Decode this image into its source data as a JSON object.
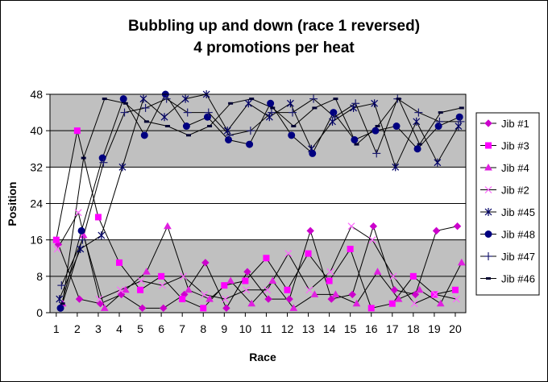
{
  "chart_data": {
    "type": "line",
    "title": "Bubbling up and down (race 1 reversed)",
    "subtitle": "4 promotions per heat",
    "xlabel": "Race",
    "ylabel": "Position",
    "ylim": [
      0,
      48
    ],
    "yticks": [
      0,
      8,
      16,
      24,
      32,
      40,
      48
    ],
    "xlim": [
      0.7,
      20.5
    ],
    "xticks": [
      1,
      2,
      3,
      4,
      5,
      6,
      7,
      8,
      9,
      10,
      11,
      12,
      13,
      14,
      15,
      16,
      17,
      18,
      19,
      20
    ],
    "shaded_bands": [
      [
        0,
        16
      ],
      [
        32,
        48
      ]
    ],
    "band_color": "#c0c0c0",
    "grid": true,
    "legend_position": "right",
    "series": [
      {
        "name": "Jib #1",
        "color": "#cc00cc",
        "marker": "diamond",
        "x": [
          1.1,
          2.1,
          3.1,
          4.1,
          5.1,
          6.1,
          7.1,
          8.1,
          9.1,
          10.1,
          11.1,
          12.1,
          13.1,
          14.1,
          15.1,
          16.1,
          17.1,
          18.1,
          19.1,
          20.1
        ],
        "y": [
          15,
          3,
          2,
          4,
          1,
          1,
          4,
          11,
          1,
          9,
          3,
          3,
          18,
          3,
          4,
          19,
          5,
          4,
          18,
          19
        ]
      },
      {
        "name": "Jib #3",
        "color": "#ff00ff",
        "marker": "square",
        "x": [
          1.0,
          2.0,
          3.0,
          4.0,
          5.0,
          6.0,
          7.0,
          8.0,
          9.0,
          10.0,
          11.0,
          12.0,
          13.0,
          14.0,
          15.0,
          16.0,
          17.0,
          18.0,
          19.0,
          20.0
        ],
        "y": [
          16,
          40,
          21,
          11,
          5,
          8,
          3,
          1,
          6,
          7,
          12,
          5,
          13,
          7,
          14,
          1,
          2,
          8,
          4,
          5
        ]
      },
      {
        "name": "Jib #4",
        "color": "#e020e0",
        "marker": "triangle",
        "x": [
          1.3,
          2.3,
          3.3,
          4.3,
          5.3,
          6.3,
          7.3,
          8.3,
          9.3,
          10.3,
          11.3,
          12.3,
          13.3,
          14.3,
          15.3,
          16.3,
          17.3,
          18.3,
          19.3,
          20.3
        ],
        "y": [
          2,
          17,
          1,
          5,
          9,
          19,
          5,
          3,
          7,
          2,
          7,
          1,
          4,
          4,
          2,
          9,
          3,
          5,
          2,
          11
        ]
      },
      {
        "name": "Jib #2",
        "color": "#ff66ff",
        "marker": "x",
        "x": [
          1.05,
          2.05,
          3.05,
          4.05,
          5.05,
          6.05,
          7.05,
          8.05,
          9.05,
          10.05,
          11.05,
          12.05,
          13.05,
          14.05,
          15.05,
          16.05,
          17.05,
          18.05,
          19.05,
          20.05
        ],
        "y": [
          14,
          22,
          3,
          5,
          7,
          6,
          8,
          4,
          3,
          5,
          5,
          13,
          5,
          9,
          19,
          16,
          8,
          2,
          4,
          3
        ]
      },
      {
        "name": "Jib #45",
        "color": "#000066",
        "marker": "star",
        "x": [
          1.15,
          2.15,
          3.15,
          4.15,
          5.15,
          6.15,
          7.15,
          8.15,
          9.15,
          10.15,
          11.15,
          12.15,
          13.15,
          14.15,
          15.15,
          16.15,
          17.15,
          18.15,
          19.15,
          20.15
        ],
        "y": [
          3,
          14,
          17,
          32,
          47,
          43,
          47,
          48,
          40,
          46,
          43,
          46,
          36,
          42,
          45,
          46,
          32,
          42,
          33,
          41
        ]
      },
      {
        "name": "Jib #48",
        "color": "#000080",
        "marker": "circle",
        "x": [
          1.2,
          2.2,
          3.2,
          4.2,
          5.2,
          6.2,
          7.2,
          8.2,
          9.2,
          10.2,
          11.2,
          12.2,
          13.2,
          14.2,
          15.2,
          16.2,
          17.2,
          18.2,
          19.2,
          20.2
        ],
        "y": [
          1,
          18,
          34,
          47,
          39,
          48,
          41,
          43,
          38,
          37,
          46,
          39,
          35,
          44,
          38,
          40,
          41,
          36,
          41,
          43
        ]
      },
      {
        "name": "Jib #47",
        "color": "#1a1a6e",
        "marker": "plus",
        "x": [
          1.25,
          2.25,
          3.25,
          4.25,
          5.25,
          6.25,
          7.25,
          8.25,
          9.25,
          10.25,
          11.25,
          12.25,
          13.25,
          14.25,
          15.25,
          16.25,
          17.25,
          18.25,
          19.25,
          20.25
        ],
        "y": [
          6,
          16,
          33,
          44,
          45,
          47,
          44,
          44,
          39,
          40,
          44,
          44,
          47,
          43,
          46,
          35,
          47,
          44,
          42,
          42
        ]
      },
      {
        "name": "Jib #46",
        "color": "#000033",
        "marker": "dash",
        "x": [
          1.3,
          2.3,
          3.3,
          4.3,
          5.3,
          6.3,
          7.3,
          8.3,
          9.3,
          10.3,
          11.3,
          12.3,
          13.3,
          14.3,
          15.3,
          16.3,
          17.3,
          18.3,
          19.3,
          20.3
        ],
        "y": [
          2,
          34,
          47,
          46,
          42,
          41,
          39,
          41,
          46,
          47,
          45,
          41,
          45,
          47,
          37,
          41,
          47,
          37,
          44,
          45
        ]
      }
    ]
  }
}
